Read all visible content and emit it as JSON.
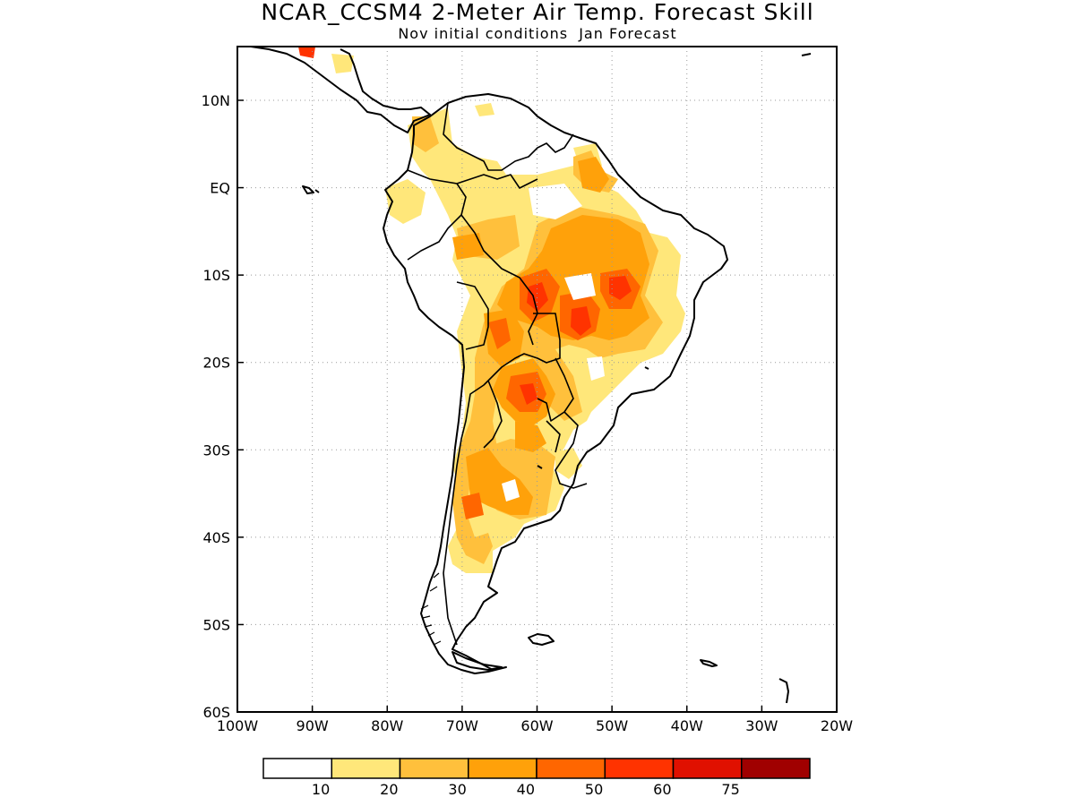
{
  "title": "NCAR_CCSM4 2-Meter Air Temp. Forecast Skill",
  "subtitle": "Nov initial conditions  Jan Forecast",
  "map": {
    "lon_range": [
      -100,
      -20
    ],
    "lat_range": [
      -60,
      16
    ],
    "lat_ticks": [
      {
        "value": 10,
        "label": "10N"
      },
      {
        "value": 0,
        "label": "EQ"
      },
      {
        "value": -10,
        "label": "10S"
      },
      {
        "value": -20,
        "label": "20S"
      },
      {
        "value": -30,
        "label": "30S"
      },
      {
        "value": -40,
        "label": "40S"
      },
      {
        "value": -50,
        "label": "50S"
      },
      {
        "value": -60,
        "label": "60S"
      }
    ],
    "lon_ticks": [
      {
        "value": -100,
        "label": "100W"
      },
      {
        "value": -90,
        "label": "90W"
      },
      {
        "value": -80,
        "label": "80W"
      },
      {
        "value": -70,
        "label": "70W"
      },
      {
        "value": -60,
        "label": "60W"
      },
      {
        "value": -50,
        "label": "50W"
      },
      {
        "value": -40,
        "label": "40W"
      },
      {
        "value": -30,
        "label": "30W"
      },
      {
        "value": -20,
        "label": "20W"
      }
    ],
    "grid": "dotted"
  },
  "colorbar": {
    "colors": [
      "#ffffff",
      "#ffe77a",
      "#ffc03c",
      "#ffa10a",
      "#ff6600",
      "#ff3300",
      "#e01000",
      "#a00000"
    ],
    "labels": [
      "10",
      "20",
      "30",
      "40",
      "50",
      "60",
      "75"
    ]
  }
}
